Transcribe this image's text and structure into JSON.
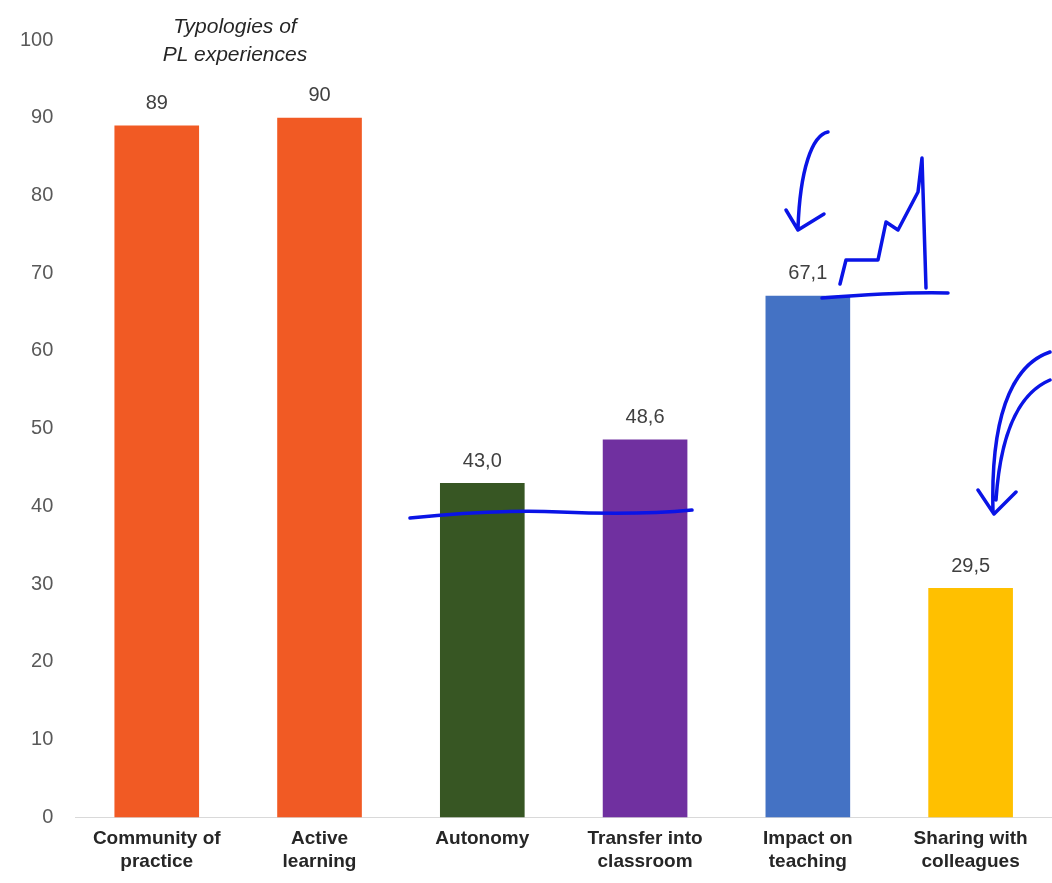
{
  "chart_data": {
    "type": "bar",
    "title": "Typologies of PL experiences",
    "categories": [
      "Community of practice",
      "Active learning",
      "Autonomy",
      "Transfer into classroom",
      "Impact on teaching",
      "Sharing with colleagues"
    ],
    "values": [
      89,
      90,
      43.0,
      48.6,
      67.1,
      29.5
    ],
    "colors": [
      "#f15a24",
      "#f15a24",
      "#375623",
      "#7030a0",
      "#4472c4",
      "#ffc000"
    ],
    "value_labels": [
      "89",
      "90",
      "43,0",
      "48,6",
      "67,1",
      "29,5"
    ],
    "ylim": [
      0,
      100
    ],
    "yticks": [
      0,
      10,
      20,
      30,
      40,
      50,
      60,
      70,
      80,
      90,
      100
    ],
    "grid": false,
    "legend": false
  }
}
